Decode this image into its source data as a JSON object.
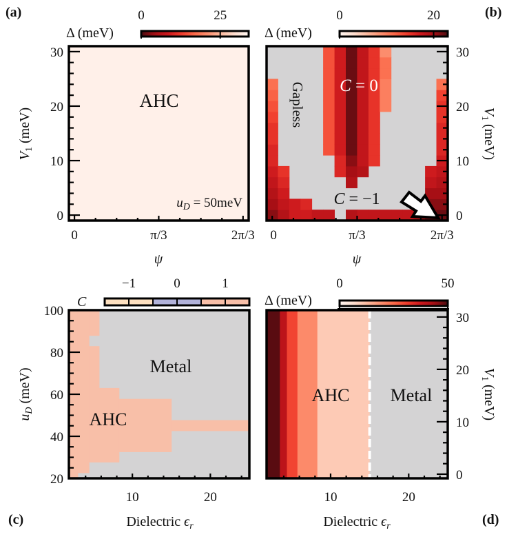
{
  "panel_labels": [
    "(a)",
    "(b)",
    "(c)",
    "(d)"
  ],
  "colors": {
    "gapless_metal_gray": "#d4d3d4",
    "c_minus1": "#fde0c0",
    "c_0": "#b2b3da",
    "c_plus1": "#f8bfa8",
    "dashed_line": "#ffffff"
  },
  "chart_data": [
    {
      "panel": "(a)",
      "type": "heatmap",
      "xlabel": "ψ",
      "ylabel": {
        "var": "V",
        "sub": "1",
        "unit": "(meV)"
      },
      "x_tick_labels": [
        "0",
        "π/3",
        "2π/3"
      ],
      "x_ticks_in_pi": [
        0,
        0.3333,
        0.6667
      ],
      "y_ticks": [
        0,
        10,
        20,
        30
      ],
      "xlim_in_pi": [
        0,
        0.6667
      ],
      "ylim": [
        0,
        30
      ],
      "colorbar": {
        "label": "Δ (meV)",
        "ticks": [
          0,
          25
        ],
        "range": [
          0,
          34
        ],
        "colormap": "Reds_r"
      },
      "uniform_gap_meV": 33,
      "annotations": {
        "phase": "AHC",
        "condition_var": "u",
        "condition_sub": "D",
        "condition_value": " = 50meV"
      }
    },
    {
      "panel": "(b)",
      "type": "heatmap",
      "xlabel": "ψ",
      "ylabel": {
        "var": "V",
        "sub": "1",
        "unit": "(meV)"
      },
      "x_tick_labels": [
        "0",
        "π/3",
        "2π/3"
      ],
      "x_ticks_in_pi": [
        0,
        0.3333,
        0.6667
      ],
      "y_ticks": [
        0,
        10,
        20,
        30
      ],
      "xlim_in_pi": [
        0,
        0.6667
      ],
      "ylim": [
        0,
        30
      ],
      "colorbar": {
        "label": "Δ (meV)",
        "ticks": [
          0,
          20
        ],
        "range": [
          0,
          23
        ],
        "colormap": "Reds"
      },
      "V1_values": [
        0,
        2,
        4,
        6,
        8,
        10,
        12,
        14,
        16,
        18,
        20,
        22,
        24,
        26,
        28,
        30
      ],
      "columns_gap_meV_by_V1": [
        [
          21,
          20,
          19,
          18,
          17,
          16,
          16,
          15,
          15,
          14,
          13,
          12,
          11,
          null,
          null,
          null
        ],
        [
          19,
          18,
          17,
          16,
          15,
          null,
          null,
          null,
          null,
          null,
          null,
          null,
          null,
          null,
          null,
          null
        ],
        [
          17,
          17,
          null,
          null,
          null,
          null,
          null,
          null,
          null,
          null,
          null,
          null,
          null,
          null,
          null,
          null
        ],
        [
          17,
          16,
          null,
          null,
          null,
          null,
          null,
          null,
          null,
          null,
          null,
          null,
          null,
          null,
          null,
          null
        ],
        [
          18,
          null,
          null,
          null,
          null,
          null,
          null,
          null,
          null,
          null,
          null,
          null,
          null,
          null,
          null,
          null
        ],
        [
          18,
          null,
          null,
          null,
          null,
          null,
          13,
          13,
          13,
          13,
          13,
          13,
          13,
          13,
          13,
          13
        ],
        [
          null,
          null,
          null,
          null,
          16,
          16,
          17,
          17,
          17,
          17,
          17,
          17,
          17,
          17,
          17,
          17
        ],
        [
          19,
          null,
          null,
          19,
          20,
          21,
          22,
          22,
          22,
          22,
          22,
          22,
          22,
          22,
          22,
          22
        ],
        [
          18,
          null,
          null,
          null,
          19,
          18,
          18,
          18,
          18,
          18,
          18,
          18,
          18,
          18,
          18,
          18
        ],
        [
          18,
          null,
          null,
          null,
          null,
          15,
          15,
          15,
          15,
          15,
          15,
          15,
          15,
          15,
          15,
          15
        ],
        [
          18,
          null,
          null,
          null,
          null,
          null,
          null,
          null,
          null,
          null,
          10,
          10,
          10,
          11,
          11,
          9
        ],
        [
          18,
          null,
          null,
          null,
          null,
          null,
          null,
          null,
          null,
          null,
          null,
          null,
          null,
          null,
          null,
          null
        ],
        [
          18,
          null,
          null,
          null,
          null,
          null,
          null,
          null,
          null,
          null,
          null,
          null,
          null,
          null,
          null,
          null
        ],
        [
          19,
          null,
          null,
          null,
          null,
          null,
          null,
          null,
          null,
          null,
          null,
          null,
          null,
          null,
          null,
          null
        ],
        [
          21,
          21,
          20,
          18,
          17,
          null,
          null,
          null,
          null,
          null,
          null,
          null,
          null,
          null,
          null,
          null
        ],
        [
          22,
          21,
          20,
          19,
          18,
          17,
          16,
          16,
          16,
          15,
          15,
          14,
          11,
          null,
          null,
          null
        ]
      ],
      "annotations": {
        "gapless": "Gapless",
        "c0_var": "C",
        "c0_value": " = 0",
        "cm1_var": "C",
        "cm1_value": " = −1"
      }
    },
    {
      "panel": "(c)",
      "type": "heatmap",
      "xlabel": {
        "text": "Dielectric ",
        "var": "ϵ",
        "sub": "r"
      },
      "ylabel": {
        "var": "u",
        "sub": "D",
        "unit": "(meV)"
      },
      "x_ticks": [
        10,
        20
      ],
      "y_ticks": [
        20,
        40,
        60,
        80,
        100
      ],
      "xlim": [
        2,
        25
      ],
      "ylim": [
        20,
        100
      ],
      "colorbar": {
        "label": "C",
        "ticks": [
          "−1",
          "0",
          "1"
        ],
        "categories": [
          -1,
          0,
          1
        ]
      },
      "ahc_regions_C1": [
        {
          "eps": [
            1.9,
            3.0
          ],
          "uD": [
            [
              20,
              100
            ]
          ]
        },
        {
          "eps": [
            3.0,
            4.45
          ],
          "uD": [
            [
              22.5,
              100
            ]
          ]
        },
        {
          "eps": [
            4.45,
            5.75
          ],
          "uD": [
            [
              27.6,
              82.9
            ],
            [
              87.8,
              100
            ]
          ]
        },
        {
          "eps": [
            5.75,
            8.3
          ],
          "uD": [
            [
              27.6,
              63
            ]
          ]
        },
        {
          "eps": [
            8.3,
            15.0
          ],
          "uD": [
            [
              32.5,
              57.8
            ]
          ]
        },
        {
          "eps": [
            15.0,
            25.0
          ],
          "uD": [
            [
              42.5,
              47.7
            ]
          ]
        }
      ],
      "annotations": {
        "metal": "Metal",
        "ahc": "AHC"
      }
    },
    {
      "panel": "(d)",
      "type": "heatmap",
      "xlabel": {
        "text": "Dielectric ",
        "var": "ϵ",
        "sub": "r"
      },
      "ylabel": {
        "var": "V",
        "sub": "1",
        "unit": "(meV)"
      },
      "x_ticks": [
        10,
        20
      ],
      "y_ticks": [
        0,
        10,
        20,
        30
      ],
      "xlim": [
        2,
        25
      ],
      "ylim": [
        0,
        30
      ],
      "colorbar": {
        "label": "Δ (meV)",
        "ticks": [
          0,
          50
        ],
        "range": [
          0,
          50
        ],
        "colormap": "Reds"
      },
      "columns": [
        {
          "eps": [
            1.8,
            3.5
          ],
          "gap_meV": 49
        },
        {
          "eps": [
            3.5,
            4.4
          ],
          "gap_meV": 40
        },
        {
          "eps": [
            4.4,
            5.75
          ],
          "gap_meV": 30
        },
        {
          "eps": [
            5.75,
            8.3
          ],
          "gap_meV": 20
        },
        {
          "eps": [
            8.3,
            15.0
          ],
          "gap_meV": 10
        },
        {
          "eps": [
            15.0,
            25.0
          ],
          "gap_meV": null
        }
      ],
      "phase_boundary_eps": 15,
      "annotations": {
        "ahc": "AHC",
        "metal": "Metal"
      }
    }
  ]
}
